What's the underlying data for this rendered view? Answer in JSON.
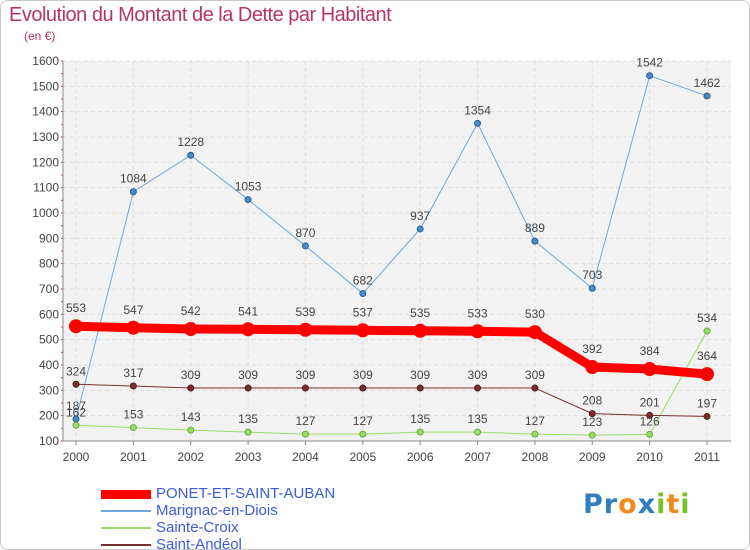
{
  "header": {
    "title": "Evolution du Montant de la Dette par Habitant",
    "subtitle": "(en €)"
  },
  "logo": {
    "text": "Proxiti",
    "letters": [
      {
        "ch": "P",
        "color": "#2f7fc0"
      },
      {
        "ch": "r",
        "color": "#2f7fc0"
      },
      {
        "ch": "o",
        "color": "#f08a1c"
      },
      {
        "ch": "x",
        "color": "#2f7fc0"
      },
      {
        "ch": "i",
        "color": "#7bbf2a"
      },
      {
        "ch": "t",
        "color": "#f08a1c"
      },
      {
        "ch": "i",
        "color": "#7bbf2a"
      }
    ]
  },
  "chart_data": {
    "type": "line",
    "title": "Evolution du Montant de la Dette par Habitant",
    "ylabel": "(en €)",
    "xlabel": "",
    "x": [
      "2000",
      "2001",
      "2002",
      "2003",
      "2004",
      "2005",
      "2006",
      "2007",
      "2008",
      "2009",
      "2010",
      "2011"
    ],
    "ylim": [
      100,
      1600
    ],
    "yticks": [
      100,
      200,
      300,
      400,
      500,
      600,
      700,
      800,
      900,
      1000,
      1100,
      1200,
      1300,
      1400,
      1500,
      1600
    ],
    "grid": true,
    "legend_position": "bottom-left",
    "series": [
      {
        "name": "PONET-ET-SAINT-AUBAN",
        "color": "#ff0000",
        "values": [
          553,
          547,
          542,
          541,
          539,
          537,
          535,
          533,
          530,
          392,
          384,
          364
        ]
      },
      {
        "name": "Marignac-en-Diois",
        "color": "#6fa8dc",
        "values": [
          187,
          1084,
          1228,
          1053,
          870,
          682,
          937,
          1354,
          889,
          703,
          1542,
          1462
        ]
      },
      {
        "name": "Sainte-Croix",
        "color": "#99dd66",
        "values": [
          162,
          153,
          143,
          135,
          127,
          127,
          135,
          135,
          127,
          123,
          126,
          534
        ]
      },
      {
        "name": "Saint-Andéol",
        "color": "#7a2e2e",
        "values": [
          324,
          317,
          309,
          309,
          309,
          309,
          309,
          309,
          309,
          208,
          201,
          197
        ]
      }
    ]
  }
}
